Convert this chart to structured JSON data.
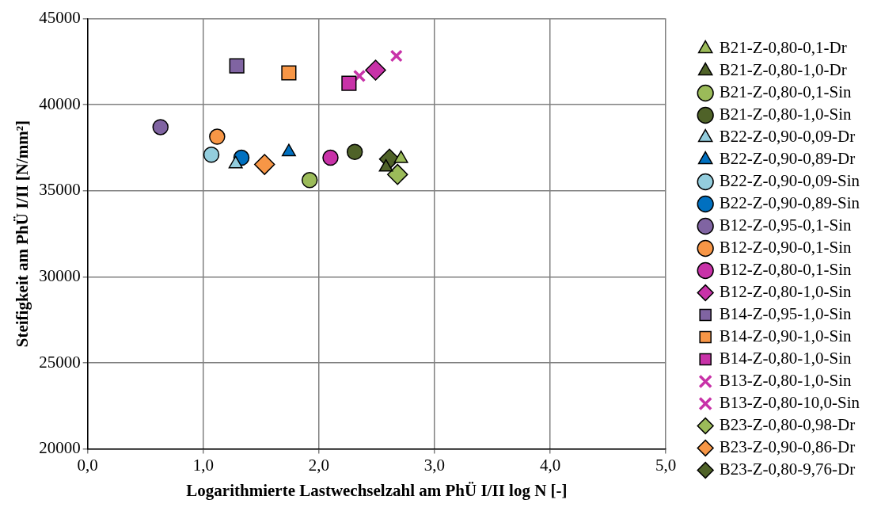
{
  "chart_data": {
    "type": "scatter",
    "xlabel": "Logarithmierte Lastwechselzahl am PhÜ I/II log N [-]",
    "ylabel": "Steifigkeit am PhÜ I/II [N/mm²]",
    "xlim": [
      0,
      5
    ],
    "xticks": [
      {
        "value": 0,
        "label": "0,0"
      },
      {
        "value": 1,
        "label": "1,0"
      },
      {
        "value": 2,
        "label": "2,0"
      },
      {
        "value": 3,
        "label": "3,0"
      },
      {
        "value": 4,
        "label": "4,0"
      },
      {
        "value": 5,
        "label": "5,0"
      }
    ],
    "ylim": [
      20000,
      45000
    ],
    "yticks": [
      20000,
      25000,
      30000,
      35000,
      40000,
      45000
    ],
    "grid": true,
    "legend": "right",
    "series": [
      {
        "name": "B21-Z-0,80-0,1-Dr",
        "color": "#9bbb59",
        "marker": "triangle",
        "x": [
          2.71
        ],
        "values": [
          36870
        ]
      },
      {
        "name": "B21-Z-0,80-1,0-Dr",
        "color": "#4f6228",
        "marker": "triangle",
        "x": [
          2.58
        ],
        "values": [
          36370
        ]
      },
      {
        "name": "B21-Z-0,80-0,1-Sin",
        "color": "#9bbb59",
        "marker": "circle",
        "x": [
          1.92
        ],
        "values": [
          35620
        ]
      },
      {
        "name": "B21-Z-0,80-1,0-Sin",
        "color": "#4f6228",
        "marker": "circle",
        "x": [
          2.31
        ],
        "values": [
          37260
        ]
      },
      {
        "name": "B22-Z-0,90-0,09-Dr",
        "color": "#93cddd",
        "marker": "triangle",
        "x": [
          1.28
        ],
        "values": [
          36560
        ]
      },
      {
        "name": "B22-Z-0,90-0,89-Dr",
        "color": "#0070c0",
        "marker": "triangle",
        "x": [
          1.74
        ],
        "values": [
          37260
        ]
      },
      {
        "name": "B22-Z-0,90-0,09-Sin",
        "color": "#93cddd",
        "marker": "circle",
        "x": [
          1.07
        ],
        "values": [
          37100
        ]
      },
      {
        "name": "B22-Z-0,90-0,89-Sin",
        "color": "#0070c0",
        "marker": "circle",
        "x": [
          1.33
        ],
        "values": [
          36920
        ]
      },
      {
        "name": "B12-Z-0,95-0,1-Sin",
        "color": "#8064a2",
        "marker": "circle",
        "x": [
          0.63
        ],
        "values": [
          38700
        ]
      },
      {
        "name": "B12-Z-0,90-0,1-Sin",
        "color": "#f79646",
        "marker": "circle",
        "x": [
          1.12
        ],
        "values": [
          38140
        ]
      },
      {
        "name": "B12-Z-0,80-0,1-Sin",
        "color": "#c832a8",
        "marker": "circle",
        "x": [
          2.1
        ],
        "values": [
          36920
        ]
      },
      {
        "name": "B12-Z-0,80-1,0-Sin",
        "color": "#c832a8",
        "marker": "diamond",
        "x": [
          2.49
        ],
        "values": [
          42010
        ]
      },
      {
        "name": "B14-Z-0,95-1,0-Sin",
        "color": "#8064a2",
        "marker": "square",
        "x": [
          1.29
        ],
        "values": [
          42260
        ]
      },
      {
        "name": "B14-Z-0,90-1,0-Sin",
        "color": "#f79646",
        "marker": "square",
        "x": [
          1.74
        ],
        "values": [
          41850
        ]
      },
      {
        "name": "B14-Z-0,80-1,0-Sin",
        "color": "#c832a8",
        "marker": "square",
        "x": [
          2.26
        ],
        "values": [
          41250
        ]
      },
      {
        "name": "B13-Z-0,80-1,0-Sin",
        "color": "#c832a8",
        "marker": "cross",
        "x": [
          2.35
        ],
        "values": [
          41670
        ]
      },
      {
        "name": "B13-Z-0,80-10,0-Sin",
        "color": "#c832a8",
        "marker": "cross",
        "x": [
          2.67
        ],
        "values": [
          42840
        ]
      },
      {
        "name": "B23-Z-0,80-0,98-Dr",
        "color": "#9bbb59",
        "marker": "diamond",
        "x": [
          2.68
        ],
        "values": [
          35950
        ]
      },
      {
        "name": "B23-Z-0,90-0,86-Dr",
        "color": "#f79646",
        "marker": "diamond",
        "x": [
          1.53
        ],
        "values": [
          36530
        ]
      },
      {
        "name": "B23-Z-0,80-9,76-Dr",
        "color": "#4f6228",
        "marker": "diamond",
        "x": [
          2.61
        ],
        "values": [
          36840
        ]
      }
    ]
  }
}
